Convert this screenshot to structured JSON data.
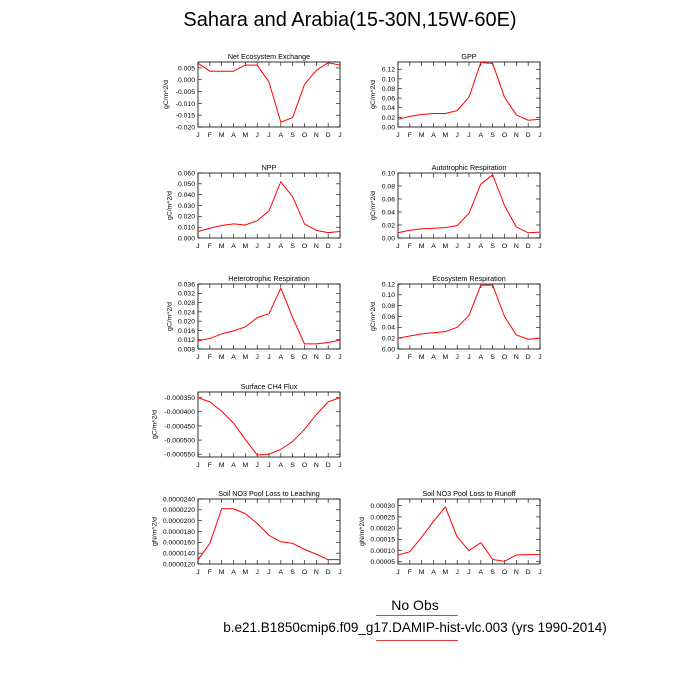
{
  "page": {
    "title": "Sahara and Arabia(15-30N,15W-60E)"
  },
  "legend": {
    "title": "No Obs",
    "case": "b.e21.B1850cmip6.f09_g17.DAMIP-hist-vlc.003 (yrs 1990-2014)",
    "line_color": "#e04040"
  },
  "colors": {
    "series": "#ff0000",
    "axis": "#000000"
  },
  "chart_data": [
    {
      "type": "line",
      "title": "Net Ecosystem Exchange",
      "ylabel": "gC/m^2/d",
      "x": [
        "J",
        "F",
        "M",
        "A",
        "M",
        "J",
        "J",
        "A",
        "S",
        "O",
        "N",
        "D",
        "J"
      ],
      "ylim": [
        -0.02,
        0.0075
      ],
      "yticks": [
        -0.02,
        -0.015,
        -0.01,
        -0.005,
        0.0,
        0.005
      ],
      "ytick_labels": [
        "-0.020",
        "-0.015",
        "-0.010",
        "-0.005",
        "0.000",
        "0.005"
      ],
      "values": [
        0.007,
        0.0036,
        0.0036,
        0.0036,
        0.0062,
        0.0062,
        -0.001,
        -0.018,
        -0.016,
        -0.002,
        0.004,
        0.0072,
        0.0062
      ]
    },
    {
      "type": "line",
      "title": "GPP",
      "ylabel": "gC/m^2/d",
      "x": [
        "J",
        "F",
        "M",
        "A",
        "M",
        "J",
        "J",
        "A",
        "S",
        "O",
        "N",
        "D",
        "J"
      ],
      "ylim": [
        0.0,
        0.135
      ],
      "yticks": [
        0.0,
        0.02,
        0.04,
        0.06,
        0.08,
        0.1,
        0.12
      ],
      "ytick_labels": [
        "0.00",
        "0.02",
        "0.04",
        "0.06",
        "0.08",
        "0.10",
        "0.12"
      ],
      "values": [
        0.016,
        0.022,
        0.026,
        0.028,
        0.028,
        0.034,
        0.062,
        0.134,
        0.132,
        0.062,
        0.025,
        0.014,
        0.016
      ]
    },
    {
      "type": "line",
      "title": "NPP",
      "ylabel": "gC/m^2/d",
      "x": [
        "J",
        "F",
        "M",
        "A",
        "M",
        "J",
        "J",
        "A",
        "S",
        "O",
        "N",
        "D",
        "J"
      ],
      "ylim": [
        0.0,
        0.06
      ],
      "yticks": [
        0.0,
        0.01,
        0.02,
        0.03,
        0.04,
        0.05,
        0.06
      ],
      "ytick_labels": [
        "0.000",
        "0.010",
        "0.020",
        "0.030",
        "0.040",
        "0.050",
        "0.060"
      ],
      "values": [
        0.006,
        0.009,
        0.0115,
        0.013,
        0.012,
        0.016,
        0.025,
        0.052,
        0.038,
        0.013,
        0.007,
        0.005,
        0.006
      ]
    },
    {
      "type": "line",
      "title": "Autotrophic Respiration",
      "ylabel": "gC/m^2/d",
      "x": [
        "J",
        "F",
        "M",
        "A",
        "M",
        "J",
        "J",
        "A",
        "S",
        "O",
        "N",
        "D",
        "J"
      ],
      "ylim": [
        0.0,
        0.1
      ],
      "yticks": [
        0.0,
        0.02,
        0.04,
        0.06,
        0.08,
        0.1
      ],
      "ytick_labels": [
        "0.00",
        "0.02",
        "0.04",
        "0.06",
        "0.08",
        "0.10"
      ],
      "values": [
        0.008,
        0.012,
        0.014,
        0.015,
        0.016,
        0.019,
        0.038,
        0.083,
        0.097,
        0.05,
        0.017,
        0.008,
        0.009
      ]
    },
    {
      "type": "line",
      "title": "Heterotrophic Respiration",
      "ylabel": "gC/m^2/d",
      "x": [
        "J",
        "F",
        "M",
        "A",
        "M",
        "J",
        "J",
        "A",
        "S",
        "O",
        "N",
        "D",
        "J"
      ],
      "ylim": [
        0.008,
        0.036
      ],
      "yticks": [
        0.008,
        0.012,
        0.016,
        0.02,
        0.024,
        0.028,
        0.032,
        0.036
      ],
      "ytick_labels": [
        "0.008",
        "0.012",
        "0.016",
        "0.020",
        "0.024",
        "0.028",
        "0.032",
        "0.036"
      ],
      "values": [
        0.0115,
        0.0125,
        0.0145,
        0.0158,
        0.0175,
        0.0215,
        0.0232,
        0.0342,
        0.0215,
        0.0102,
        0.0102,
        0.0108,
        0.0118
      ]
    },
    {
      "type": "line",
      "title": "Ecosystem Respiration",
      "ylabel": "gC/m^2/d",
      "x": [
        "J",
        "F",
        "M",
        "A",
        "M",
        "J",
        "J",
        "A",
        "S",
        "O",
        "N",
        "D",
        "J"
      ],
      "ylim": [
        0.0,
        0.12
      ],
      "yticks": [
        0.0,
        0.02,
        0.04,
        0.06,
        0.08,
        0.1,
        0.12
      ],
      "ytick_labels": [
        "0.00",
        "0.02",
        "0.04",
        "0.06",
        "0.08",
        "0.10",
        "0.12"
      ],
      "values": [
        0.02,
        0.024,
        0.028,
        0.03,
        0.032,
        0.04,
        0.062,
        0.118,
        0.118,
        0.06,
        0.026,
        0.018,
        0.02
      ]
    },
    {
      "type": "line",
      "title": "Surface CH4 Flux",
      "ylabel": "gC/m^2/d",
      "x": [
        "J",
        "F",
        "M",
        "A",
        "M",
        "J",
        "J",
        "A",
        "S",
        "O",
        "N",
        "D",
        "J"
      ],
      "ylim": [
        -0.00056,
        -0.00033
      ],
      "yticks": [
        -0.00055,
        -0.0005,
        -0.00045,
        -0.0004,
        -0.00035
      ],
      "ytick_labels": [
        "-0.000550",
        "-0.000500",
        "-0.000450",
        "-0.000400",
        "-0.000350"
      ],
      "values": [
        -0.00035,
        -0.000365,
        -0.000398,
        -0.00044,
        -0.000498,
        -0.000553,
        -0.00055,
        -0.000533,
        -0.000505,
        -0.000462,
        -0.00041,
        -0.000365,
        -0.00035
      ]
    },
    {
      "type": "line",
      "title": "Soil NO3 Pool Loss to Leaching",
      "ylabel": "gN/m^2/d",
      "x": [
        "J",
        "F",
        "M",
        "A",
        "M",
        "J",
        "J",
        "A",
        "S",
        "O",
        "N",
        "D",
        "J"
      ],
      "ylim": [
        1.2e-05,
        2.4e-05
      ],
      "yticks": [
        1.2e-05,
        1.4e-05,
        1.6e-05,
        1.8e-05,
        2e-05,
        2.2e-05,
        2.4e-05
      ],
      "ytick_labels": [
        "0.0000120",
        "0.0000140",
        "0.0000160",
        "0.0000180",
        "0.0000200",
        "0.0000220",
        "0.0000240"
      ],
      "values": [
        1.28e-05,
        1.58e-05,
        2.22e-05,
        2.22e-05,
        2.13e-05,
        1.95e-05,
        1.73e-05,
        1.61e-05,
        1.58e-05,
        1.47e-05,
        1.38e-05,
        1.28e-05,
        1.28e-05
      ]
    },
    {
      "type": "line",
      "title": "Soil NO3 Pool Loss to Runoff",
      "ylabel": "gN/m^2/d",
      "x": [
        "J",
        "F",
        "M",
        "A",
        "M",
        "J",
        "J",
        "A",
        "S",
        "O",
        "N",
        "D",
        "J"
      ],
      "ylim": [
        4e-05,
        0.00033
      ],
      "yticks": [
        5e-05,
        0.0001,
        0.00015,
        0.0002,
        0.00025,
        0.0003
      ],
      "ytick_labels": [
        "0.00005",
        "0.00010",
        "0.00015",
        "0.00020",
        "0.00025",
        "0.00030"
      ],
      "values": [
        8e-05,
        9.5e-05,
        0.00016,
        0.00023,
        0.000295,
        0.00016,
        0.0001,
        0.000135,
        6e-05,
        5.2e-05,
        8e-05,
        8.2e-05,
        8.2e-05
      ]
    }
  ]
}
